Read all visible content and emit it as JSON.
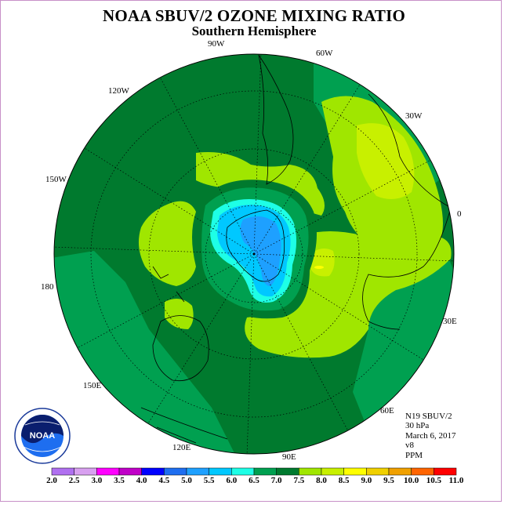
{
  "title": "NOAA SBUV/2 OZONE MIXING RATIO",
  "subtitle": "Southern Hemisphere",
  "longitude_labels": [
    {
      "key": "90w",
      "text": "90W"
    },
    {
      "key": "60w",
      "text": "60W"
    },
    {
      "key": "30w",
      "text": "30W"
    },
    {
      "key": "0",
      "text": "0"
    },
    {
      "key": "30e",
      "text": "30E"
    },
    {
      "key": "60e",
      "text": "60E"
    },
    {
      "key": "90e",
      "text": "90E"
    },
    {
      "key": "120e",
      "text": "120E"
    },
    {
      "key": "150e",
      "text": "150E"
    },
    {
      "key": "180",
      "text": "180"
    },
    {
      "key": "150w",
      "text": "150W"
    },
    {
      "key": "120w",
      "text": "120W"
    }
  ],
  "info": {
    "satellite": "N19 SBUV/2",
    "level": "30 hPa",
    "date": "March 6, 2017",
    "version": "v8",
    "units": "PPM"
  },
  "logo": {
    "text": "NOAA",
    "icon": "noaa-logo-icon"
  },
  "colorbar": {
    "labels": [
      "2.0",
      "2.5",
      "3.0",
      "3.5",
      "4.0",
      "4.5",
      "5.0",
      "5.5",
      "6.0",
      "6.5",
      "7.0",
      "7.5",
      "8.0",
      "8.5",
      "9.0",
      "9.5",
      "10.0",
      "10.5",
      "11.0"
    ],
    "colors": [
      "#b070f0",
      "#d8a0f0",
      "#ff00ff",
      "#c000c8",
      "#0000ff",
      "#1e6ef0",
      "#1ea0ff",
      "#00c8ff",
      "#1effe6",
      "#00a050",
      "#007a2e",
      "#a0e600",
      "#c8f000",
      "#ffff00",
      "#f0d000",
      "#f0a000",
      "#ff6400",
      "#ff0000",
      "#8b5a3c"
    ]
  },
  "colors": {
    "ring_dark": "#007a2e",
    "ring_mid": "#00a050",
    "light_green": "#a0e600",
    "yellow_green": "#c8f000",
    "yellow": "#ffff00",
    "cyan": "#1effe6",
    "light_blue": "#00c8ff",
    "blue": "#1ea0ff"
  }
}
